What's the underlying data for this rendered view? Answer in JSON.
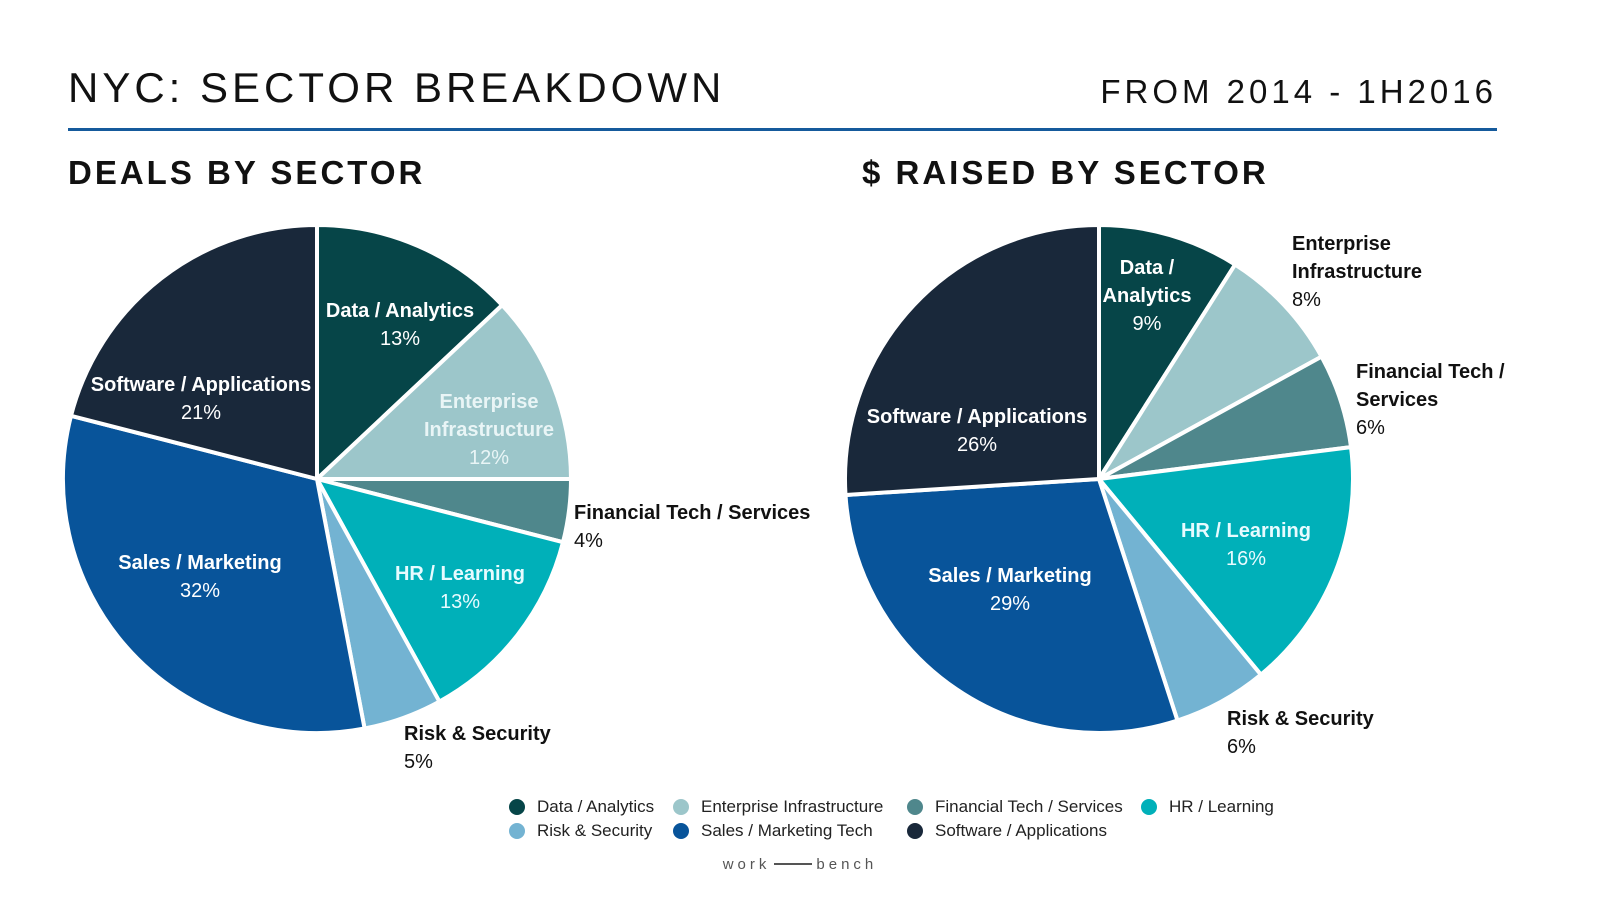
{
  "page": {
    "title": "NYC: SECTOR BREAKDOWN",
    "date_range": "FROM 2014 - 1H2016",
    "brand": {
      "left": "work",
      "right": "bench"
    }
  },
  "colors": {
    "Data / Analytics": "#064548",
    "Enterprise Infrastructure": "#9cc6ca",
    "Financial Tech / Services": "#4f878c",
    "HR / Learning": "#00b0b9",
    "Risk & Security": "#73b3d2",
    "Sales / Marketing": "#08549a",
    "Software / Applications": "#19283a",
    "accent": "#155a9c"
  },
  "chart_data": [
    {
      "type": "pie",
      "title": "DEALS BY SECTOR",
      "slices": [
        {
          "label": "Data / Analytics",
          "value": 13,
          "value_label": "13%"
        },
        {
          "label": "Enterprise Infrastructure",
          "value": 12,
          "value_label": "12%"
        },
        {
          "label": "Financial Tech / Services",
          "value": 4,
          "value_label": "4%"
        },
        {
          "label": "HR / Learning",
          "value": 13,
          "value_label": "13%"
        },
        {
          "label": "Risk & Security",
          "value": 5,
          "value_label": "5%"
        },
        {
          "label": "Sales / Marketing",
          "value": 32,
          "value_label": "32%"
        },
        {
          "label": "Software / Applications",
          "value": 21,
          "value_label": "21%"
        }
      ]
    },
    {
      "type": "pie",
      "title": "$ RAISED BY SECTOR",
      "slices": [
        {
          "label": "Data / Analytics",
          "value": 9,
          "value_label": "9%"
        },
        {
          "label": "Enterprise Infrastructure",
          "value": 8,
          "value_label": "8%"
        },
        {
          "label": "Financial Tech / Services",
          "value": 6,
          "value_label": "6%"
        },
        {
          "label": "HR / Learning",
          "value": 16,
          "value_label": "16%"
        },
        {
          "label": "Risk & Security",
          "value": 6,
          "value_label": "6%"
        },
        {
          "label": "Sales / Marketing",
          "value": 29,
          "value_label": "29%"
        },
        {
          "label": "Software / Applications",
          "value": 26,
          "value_label": "26%"
        }
      ]
    }
  ],
  "legend": {
    "items": [
      {
        "label": "Data / Analytics",
        "color": "#064548"
      },
      {
        "label": "Enterprise Infrastructure",
        "color": "#9cc6ca"
      },
      {
        "label": "Financial Tech / Services",
        "color": "#4f878c"
      },
      {
        "label": "HR / Learning",
        "color": "#00b0b9"
      },
      {
        "label": "Risk & Security",
        "color": "#73b3d2"
      },
      {
        "label": "Sales / Marketing Tech",
        "color": "#08549a"
      },
      {
        "label": "Software / Applications",
        "color": "#19283a"
      }
    ]
  }
}
